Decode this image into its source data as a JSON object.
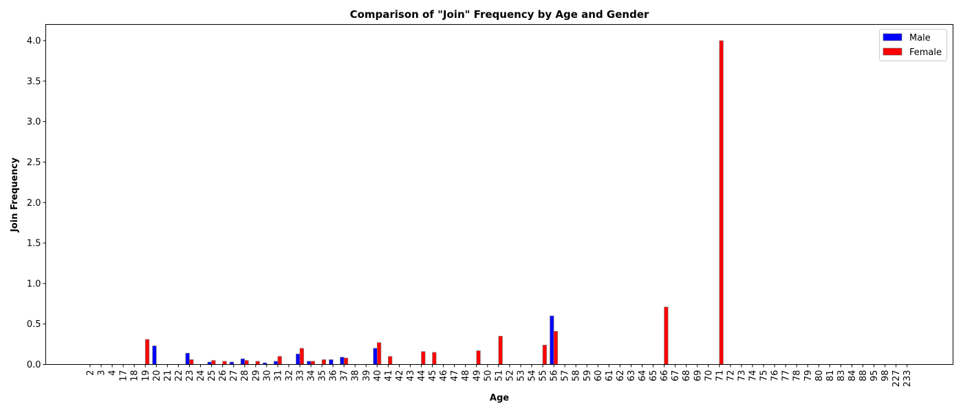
{
  "chart_data": {
    "type": "bar",
    "title": "Comparison of \"Join\" Frequency by Age and Gender",
    "xlabel": "Age",
    "ylabel": "Join Frequency",
    "ylim": [
      0,
      4.2
    ],
    "yticks": [
      "0.0",
      "0.5",
      "1.0",
      "1.5",
      "2.0",
      "2.5",
      "3.0",
      "3.5",
      "4.0"
    ],
    "grid": false,
    "legend_position": "top-right",
    "categories": [
      "2",
      "3",
      "4",
      "17",
      "18",
      "19",
      "20",
      "21",
      "22",
      "23",
      "24",
      "25",
      "26",
      "27",
      "28",
      "29",
      "30",
      "31",
      "32",
      "33",
      "34",
      "35",
      "36",
      "37",
      "38",
      "39",
      "40",
      "41",
      "42",
      "43",
      "44",
      "45",
      "46",
      "47",
      "48",
      "49",
      "50",
      "51",
      "52",
      "53",
      "54",
      "55",
      "56",
      "57",
      "58",
      "59",
      "60",
      "61",
      "62",
      "63",
      "64",
      "65",
      "66",
      "67",
      "68",
      "69",
      "70",
      "71",
      "72",
      "73",
      "74",
      "75",
      "76",
      "77",
      "78",
      "79",
      "80",
      "81",
      "83",
      "84",
      "88",
      "95",
      "98",
      "227",
      "233"
    ],
    "series": [
      {
        "name": "Male",
        "color": "#0000ff",
        "values": [
          0,
          0,
          0,
          0,
          0,
          0,
          0.23,
          0,
          0,
          0.14,
          0,
          0.03,
          0,
          0.03,
          0.07,
          0,
          0.02,
          0.04,
          0,
          0.13,
          0.04,
          0,
          0.06,
          0.09,
          0,
          0,
          0.2,
          0,
          0,
          0,
          0,
          0,
          0,
          0,
          0,
          0,
          0,
          0,
          0,
          0,
          0,
          0,
          0.6,
          0,
          0,
          0,
          0,
          0,
          0,
          0,
          0,
          0,
          0,
          0,
          0,
          0,
          0,
          0,
          0,
          0,
          0,
          0,
          0,
          0,
          0,
          0,
          0,
          0,
          0,
          0,
          0,
          0,
          0,
          0,
          0
        ]
      },
      {
        "name": "Female",
        "color": "#ff0000",
        "values": [
          0,
          0,
          0,
          0,
          0,
          0.31,
          0,
          0,
          0,
          0.06,
          0,
          0.05,
          0.04,
          0,
          0.05,
          0.04,
          0,
          0.1,
          0,
          0.2,
          0.04,
          0.06,
          0,
          0.08,
          0,
          0,
          0.27,
          0.1,
          0,
          0,
          0.16,
          0.15,
          0,
          0,
          0,
          0.17,
          0,
          0.35,
          0,
          0,
          0,
          0.24,
          0.41,
          0,
          0,
          0,
          0,
          0,
          0,
          0,
          0,
          0,
          0.71,
          0,
          0,
          0,
          0,
          4.0,
          0,
          0,
          0,
          0,
          0,
          0,
          0,
          0,
          0,
          0,
          0,
          0,
          0,
          0,
          0,
          0,
          0
        ]
      }
    ]
  }
}
